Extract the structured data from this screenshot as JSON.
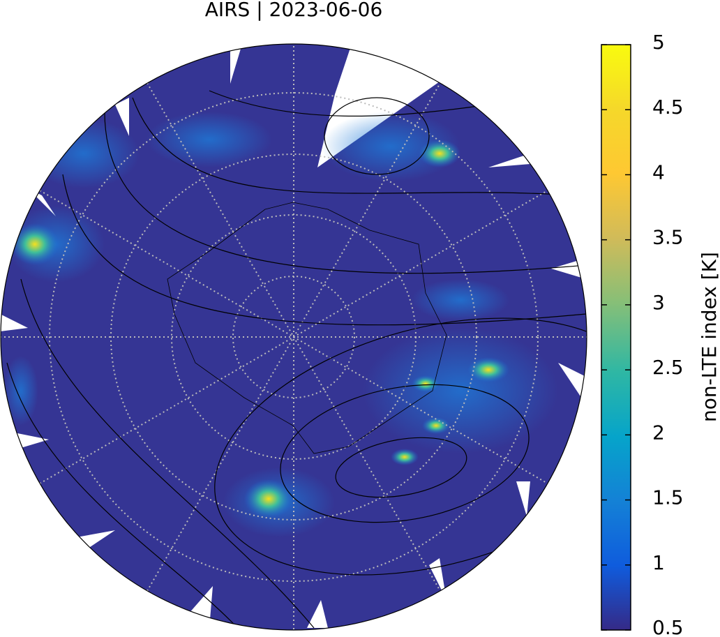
{
  "title": "AIRS | 2023-06-06",
  "colorbar": {
    "label": "non-LTE index [K]",
    "lim": [
      0.5,
      5
    ],
    "ticks": [
      0.5,
      1,
      1.5,
      2,
      2.5,
      3,
      3.5,
      4,
      4.5,
      5
    ]
  }
}
